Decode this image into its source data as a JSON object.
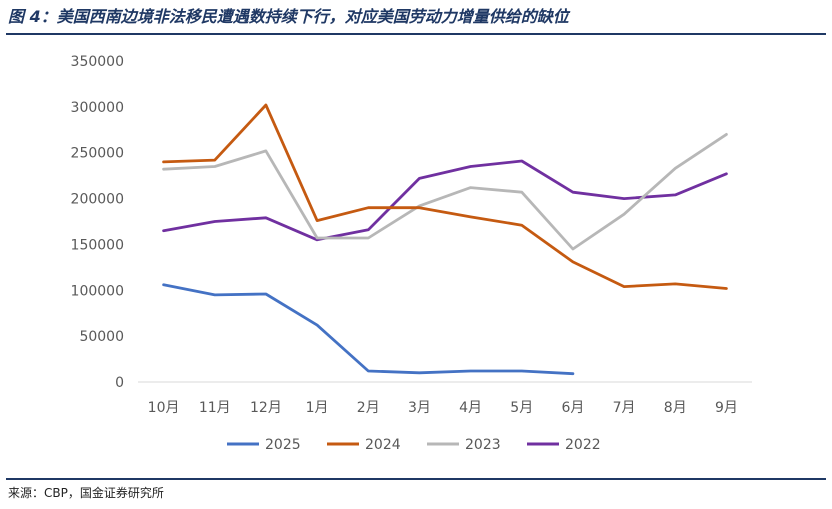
{
  "title": "图 4：美国西南边境非法移民遭遇数持续下行，对应美国劳动力增量供给的缺位",
  "source": "来源：CBP，国金证券研究所",
  "chart_data": {
    "type": "line",
    "title": "",
    "xlabel": "",
    "ylabel": "",
    "categories": [
      "10月",
      "11月",
      "12月",
      "1月",
      "2月",
      "3月",
      "4月",
      "5月",
      "6月",
      "7月",
      "8月",
      "9月"
    ],
    "ylim": [
      0,
      350000
    ],
    "yticks": [
      0,
      50000,
      100000,
      150000,
      200000,
      250000,
      300000,
      350000
    ],
    "grid": false,
    "legend": "bottom",
    "series": [
      {
        "name": "2025",
        "color": "#4472c4",
        "values": [
          106000,
          95000,
          96000,
          62000,
          12000,
          10000,
          12000,
          12000,
          9000,
          null,
          null,
          null
        ]
      },
      {
        "name": "2024",
        "color": "#c55a11",
        "values": [
          240000,
          242000,
          302000,
          176000,
          190000,
          190000,
          180000,
          171000,
          131000,
          104000,
          107000,
          102000
        ]
      },
      {
        "name": "2023",
        "color": "#b7b7b7",
        "values": [
          232000,
          235000,
          252000,
          157000,
          157000,
          192000,
          212000,
          207000,
          145000,
          183000,
          233000,
          270000
        ]
      },
      {
        "name": "2022",
        "color": "#7030a0",
        "values": [
          165000,
          175000,
          179000,
          155000,
          166000,
          222000,
          235000,
          241000,
          207000,
          200000,
          204000,
          227000
        ]
      }
    ]
  }
}
